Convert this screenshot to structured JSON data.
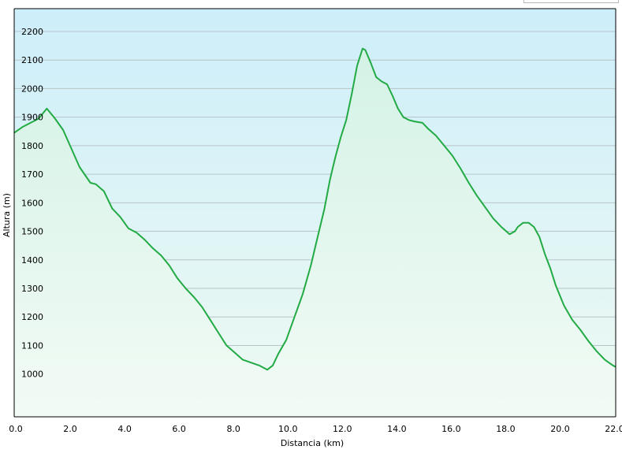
{
  "chart_data": {
    "type": "area",
    "xlabel": "Distancia  (km)",
    "ylabel": "Altura (m)",
    "xlim": [
      0,
      22.1
    ],
    "ylim": [
      850,
      2280
    ],
    "x_ticks": [
      0,
      2,
      4,
      6,
      8,
      10,
      12,
      14,
      16,
      18,
      20,
      22
    ],
    "x_tick_labels": [
      "0.0",
      "2.0",
      "4.0",
      "6.0",
      "8.0",
      "10.0",
      "12.0",
      "14.0",
      "16.0",
      "18.0",
      "20.0",
      "22.0"
    ],
    "y_ticks": [
      1000,
      1100,
      1200,
      1300,
      1400,
      1500,
      1600,
      1700,
      1800,
      1900,
      2000,
      2100,
      2200
    ],
    "y_tick_labels": [
      "1000",
      "1100",
      "1200",
      "1300",
      "1400",
      "1500",
      "1600",
      "1700",
      "1800",
      "1900",
      "2000",
      "2100",
      "2200"
    ],
    "grid": true,
    "colors": {
      "line": "#22aa44",
      "fill_top": "#d4f2e6",
      "fill_bottom": "#f2fbf5",
      "bg_top": "#cdeefa",
      "bg_bottom": "#eefaf2",
      "grid": "#b8c4c8"
    },
    "series": [
      {
        "x": [
          0.0,
          0.3,
          0.6,
          0.9,
          1.2,
          1.5,
          1.8,
          2.1,
          2.4,
          2.8,
          3.0,
          3.3,
          3.6,
          3.9,
          4.2,
          4.5,
          4.8,
          5.1,
          5.4,
          5.7,
          6.0,
          6.3,
          6.6,
          6.9,
          7.2,
          7.5,
          7.8,
          8.1,
          8.4,
          8.7,
          9.0,
          9.3,
          9.5,
          9.7,
          10.0,
          10.3,
          10.6,
          10.9,
          11.1,
          11.4,
          11.6,
          11.8,
          12.0,
          12.2,
          12.4,
          12.6,
          12.8,
          12.9,
          13.1,
          13.3,
          13.5,
          13.7,
          13.9,
          14.1,
          14.3,
          14.5,
          14.7,
          15.0,
          15.2,
          15.5,
          15.8,
          16.1,
          16.4,
          16.7,
          17.0,
          17.3,
          17.6,
          17.9,
          18.2,
          18.4,
          18.5,
          18.7,
          18.9,
          19.1,
          19.3,
          19.5,
          19.7,
          19.9,
          20.2,
          20.5,
          20.8,
          21.1,
          21.4,
          21.7,
          22.0,
          22.1
        ],
        "y": [
          1845,
          1865,
          1880,
          1895,
          1930,
          1895,
          1855,
          1790,
          1725,
          1670,
          1665,
          1640,
          1580,
          1550,
          1510,
          1495,
          1470,
          1440,
          1415,
          1380,
          1335,
          1300,
          1270,
          1235,
          1190,
          1145,
          1100,
          1075,
          1050,
          1040,
          1030,
          1015,
          1030,
          1070,
          1120,
          1200,
          1280,
          1380,
          1460,
          1580,
          1680,
          1760,
          1830,
          1890,
          1980,
          2080,
          2140,
          2135,
          2090,
          2040,
          2025,
          2015,
          1975,
          1930,
          1900,
          1890,
          1885,
          1880,
          1860,
          1835,
          1800,
          1765,
          1720,
          1670,
          1625,
          1585,
          1545,
          1515,
          1490,
          1500,
          1515,
          1530,
          1530,
          1515,
          1480,
          1420,
          1370,
          1310,
          1240,
          1190,
          1155,
          1115,
          1080,
          1050,
          1030,
          1025
        ]
      }
    ]
  }
}
